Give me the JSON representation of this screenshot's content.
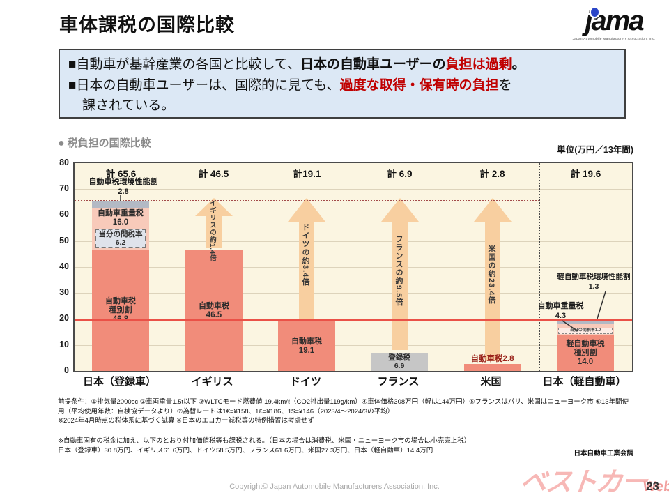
{
  "page": {
    "title": "車体課税の国際比較",
    "page_number": "23",
    "copyright": "Copyright© Japan Automobile Manufacturers Association, Inc.",
    "jama_logo": {
      "text": "jama",
      "subtext": "Japan Automobile Manufacturers Association, Inc."
    },
    "bestcar_logo": {
      "main": "ベストカー",
      "suffix": "Web"
    }
  },
  "summary_box": {
    "line1_prefix": "■自動車が基幹産業の各国と比較して、",
    "line1_bold": "日本の自動車ユーザーの",
    "line1_red": "負担は過剰",
    "line1_end": "。",
    "line2_prefix": "■日本の自動車ユーザーは、国際的に見ても、",
    "line2_red": "過度な取得・保有時の負担",
    "line2_end": "を",
    "line3": "課されている。"
  },
  "chart": {
    "heading_icon": "●",
    "heading": "税負担の国際比較",
    "unit_label": "単位(万円／13年間)",
    "source": "日本自動車工業会調",
    "yticks": [
      "0",
      "10",
      "20",
      "30",
      "40",
      "50",
      "60",
      "70",
      "80"
    ],
    "notes1a": "前提条件：①排気量2000cc ②車両重量1.5t以下 ③WLTCモード燃費値 19.4km/ℓ（CO2排出量119g/km）④車体価格308万円（軽は144万円）⑤フランスはパリ、米国はニューヨーク市 ⑥13年間使用（平均使用年数：自検協データより）⑦為替レートは1€=¥158、1£=¥186、1$=¥146（2023/4～2024/3の平均）",
    "notes1b": "※2024年4月時点の税体系に基づく試算 ※日本のエコカー減税等の特例措置は考慮せず",
    "notes2a": "※自動車固有の税金に加え、以下のとおり付加価値税等も課税される。（日本の場合は消費税、米国・ニューヨーク市の場合は小売売上税）",
    "notes2b": "日本（登録車）30.8万円、イギリス61.6万円、ドイツ58.5万円、フランス61.6万円、米国27.3万円、日本（軽自動車）14.4万円"
  },
  "chart_data": {
    "type": "bar",
    "stacked": true,
    "title": "税負担の国際比較",
    "unit": "万円／13年間",
    "ylim": [
      0,
      80
    ],
    "yticks": [
      0,
      10,
      20,
      30,
      40,
      50,
      60,
      70,
      80
    ],
    "grid": true,
    "categories": [
      "日本（登録車）",
      "イギリス",
      "ドイツ",
      "フランス",
      "米国",
      "日本（軽自動車）"
    ],
    "totals": [
      65.6,
      46.5,
      19.1,
      6.9,
      2.8,
      19.6
    ],
    "total_labels": [
      "計 65.6",
      "計 46.5",
      "計19.1",
      "計 6.9",
      "計 2.8",
      "計 19.6"
    ],
    "bars": [
      {
        "category": "日本（登録車）",
        "segments": [
          {
            "label": "自動車税環境性能割",
            "value": 2.8,
            "display": "2.8",
            "color": "#b3b9c4",
            "label_position": "above"
          },
          {
            "label": "自動車重量税",
            "value": 16.0,
            "display": "16.0",
            "color": "#f8caba",
            "sub_note": {
              "label": "当分の間税率",
              "value": 6.2,
              "display": "6.2"
            }
          },
          {
            "label": "自動車税種別割",
            "label_line1": "自動車税",
            "label_line2": "種別割",
            "value": 46.8,
            "display": "46.8",
            "color": "#f18c7a"
          }
        ]
      },
      {
        "category": "イギリス",
        "segments": [
          {
            "label": "自動車税",
            "value": 46.5,
            "display": "46.5",
            "color": "#f18c7a"
          }
        ]
      },
      {
        "category": "ドイツ",
        "segments": [
          {
            "label": "自動車税",
            "value": 19.1,
            "display": "19.1",
            "color": "#f18c7a"
          }
        ]
      },
      {
        "category": "フランス",
        "segments": [
          {
            "label": "登録税",
            "value": 6.9,
            "display": "6.9",
            "color": "#c6c6c6"
          }
        ]
      },
      {
        "category": "米国",
        "segments": [
          {
            "label": "自動車税",
            "value": 2.8,
            "display": "自動車税2.8",
            "color": "#f18c7a"
          }
        ]
      },
      {
        "category": "日本（軽自動車）",
        "segments": [
          {
            "label": "軽自動車税環境性能割",
            "value": 1.3,
            "display": "1.3",
            "color": "#b3b9c4",
            "label_position": "outside"
          },
          {
            "label": "自動車重量税",
            "value": 4.3,
            "display": "4.3",
            "color": "#f8caba",
            "label_position": "outside",
            "sub_note": {
              "label": "当分の間税率1.0",
              "value": 1.0
            }
          },
          {
            "label": "軽自動車税種別割",
            "label_line1": "軽自動車税",
            "label_line2": "種別割",
            "value": 14.0,
            "display": "14.0",
            "color": "#f18c7a"
          }
        ]
      }
    ],
    "multipliers": [
      {
        "country": "イギリス",
        "label": "イギリスの約1.4倍"
      },
      {
        "country": "ドイツ",
        "label": "ドイツの約3.4倍"
      },
      {
        "country": "フランス",
        "label": "フランスの約9.5倍"
      },
      {
        "country": "米国",
        "label": "米国の約23.4倍"
      }
    ],
    "reference_lines": [
      {
        "value": 65.6,
        "style": "dotted",
        "color": "#a34a4a"
      },
      {
        "value": 19.6,
        "style": "solid",
        "color": "#ea5147"
      }
    ],
    "colors": {
      "bar_main": "#f18c7a",
      "bar_weight": "#f8caba",
      "bar_env": "#b3b9c4",
      "bar_gray": "#c6c6c6",
      "arrow": "#f8cfa0",
      "plot_bg": "#fbf5e1",
      "accent_red": "#c00000"
    }
  }
}
